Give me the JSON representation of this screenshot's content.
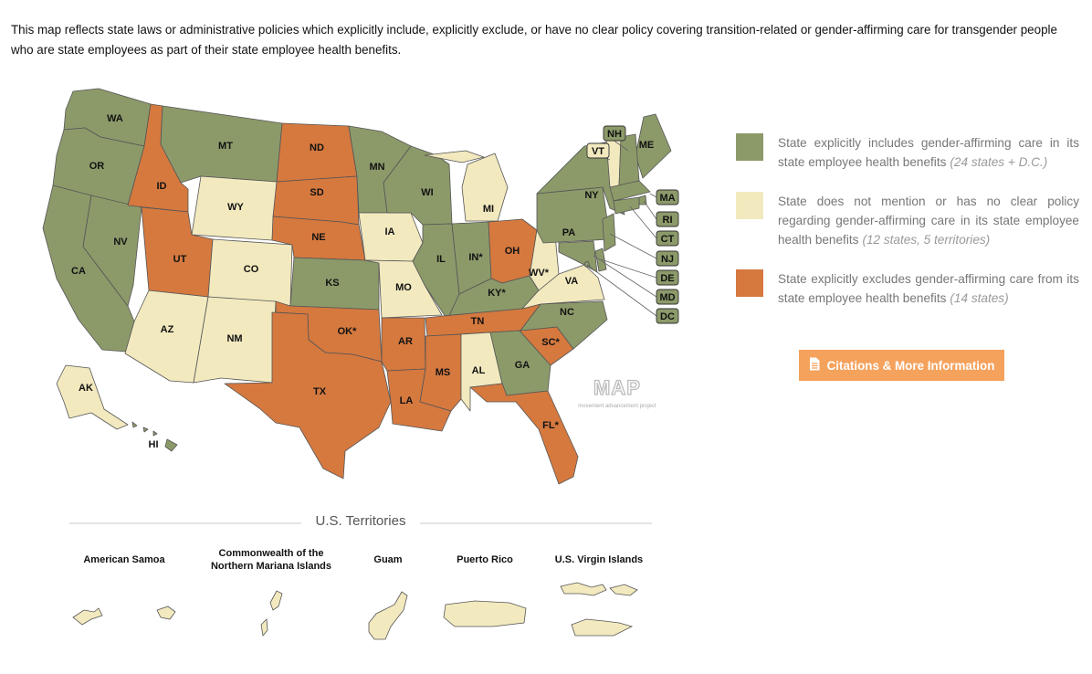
{
  "intro_text": "This map reflects state laws or administrative policies which explicitly include, explicitly exclude, or have no clear policy covering transition-related or gender-affirming care for transgender people who are state employees as part of their state employee health benefits.",
  "colors": {
    "includes": "#8c9a6a",
    "no_policy": "#f2e9bf",
    "excludes": "#d5793f",
    "button": "#f5a25d",
    "border": "#555555"
  },
  "legend": [
    {
      "status": "includes",
      "text": "State explicitly includes gender-affirming care in its state employee health benefits",
      "count": "(24 states + D.C.)"
    },
    {
      "status": "no_policy",
      "text": "State does not mention or has no clear policy regarding gender-affirming care in its state employee health benefits",
      "count": "(12 states, 5 territories)"
    },
    {
      "status": "excludes",
      "text": "State explicitly excludes gender-affirming care from its state employee health benefits",
      "count": "(14 states)"
    }
  ],
  "button": {
    "label": "Citations & More Information",
    "icon": "document-icon"
  },
  "logo": {
    "text": "MAP",
    "tagline": "movement advancement project"
  },
  "territories_title": "U.S. Territories",
  "territories": [
    {
      "name": "American Samoa",
      "status": "no_policy"
    },
    {
      "name": "Commonwealth of the Northern Mariana Islands",
      "status": "no_policy"
    },
    {
      "name": "Guam",
      "status": "no_policy"
    },
    {
      "name": "Puerto Rico",
      "status": "no_policy"
    },
    {
      "name": "U.S. Virgin Islands",
      "status": "no_policy"
    }
  ],
  "states": [
    {
      "abbr": "WA",
      "status": "includes"
    },
    {
      "abbr": "OR",
      "status": "includes"
    },
    {
      "abbr": "CA",
      "status": "includes"
    },
    {
      "abbr": "NV",
      "status": "includes"
    },
    {
      "abbr": "ID",
      "status": "excludes"
    },
    {
      "abbr": "MT",
      "status": "includes"
    },
    {
      "abbr": "WY",
      "status": "no_policy"
    },
    {
      "abbr": "UT",
      "status": "excludes"
    },
    {
      "abbr": "CO",
      "status": "no_policy"
    },
    {
      "abbr": "AZ",
      "status": "no_policy"
    },
    {
      "abbr": "NM",
      "status": "no_policy"
    },
    {
      "abbr": "ND",
      "status": "excludes"
    },
    {
      "abbr": "SD",
      "status": "excludes"
    },
    {
      "abbr": "NE",
      "status": "excludes"
    },
    {
      "abbr": "KS",
      "status": "includes"
    },
    {
      "abbr": "OK*",
      "status": "excludes"
    },
    {
      "abbr": "TX",
      "status": "excludes"
    },
    {
      "abbr": "MN",
      "status": "includes"
    },
    {
      "abbr": "IA",
      "status": "no_policy"
    },
    {
      "abbr": "MO",
      "status": "no_policy"
    },
    {
      "abbr": "AR",
      "status": "excludes"
    },
    {
      "abbr": "LA",
      "status": "excludes"
    },
    {
      "abbr": "WI",
      "status": "includes"
    },
    {
      "abbr": "IL",
      "status": "includes"
    },
    {
      "abbr": "MI",
      "status": "no_policy"
    },
    {
      "abbr": "IN*",
      "status": "includes"
    },
    {
      "abbr": "OH",
      "status": "excludes"
    },
    {
      "abbr": "KY*",
      "status": "includes"
    },
    {
      "abbr": "TN",
      "status": "excludes"
    },
    {
      "abbr": "MS",
      "status": "excludes"
    },
    {
      "abbr": "AL",
      "status": "no_policy"
    },
    {
      "abbr": "GA",
      "status": "includes"
    },
    {
      "abbr": "FL*",
      "status": "excludes"
    },
    {
      "abbr": "SC*",
      "status": "excludes"
    },
    {
      "abbr": "NC",
      "status": "includes"
    },
    {
      "abbr": "VA",
      "status": "no_policy"
    },
    {
      "abbr": "WV*",
      "status": "no_policy"
    },
    {
      "abbr": "PA",
      "status": "includes"
    },
    {
      "abbr": "NY",
      "status": "includes"
    },
    {
      "abbr": "ME",
      "status": "includes"
    },
    {
      "abbr": "AK",
      "status": "no_policy"
    },
    {
      "abbr": "HI",
      "status": "includes"
    },
    {
      "abbr": "VT",
      "status": "no_policy"
    },
    {
      "abbr": "NH",
      "status": "includes"
    },
    {
      "abbr": "MA",
      "status": "includes"
    },
    {
      "abbr": "RI",
      "status": "includes"
    },
    {
      "abbr": "CT",
      "status": "includes"
    },
    {
      "abbr": "NJ",
      "status": "includes"
    },
    {
      "abbr": "DE",
      "status": "includes"
    },
    {
      "abbr": "MD",
      "status": "includes"
    },
    {
      "abbr": "DC",
      "status": "includes"
    }
  ]
}
